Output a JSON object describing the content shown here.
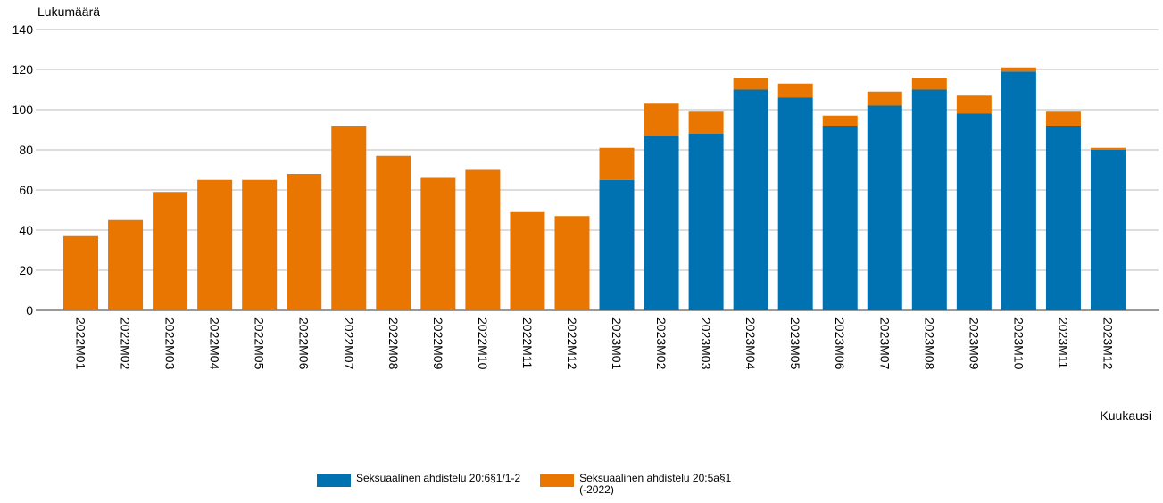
{
  "chart_data": {
    "type": "bar",
    "stacked": true,
    "y_label": "Lukumäärä",
    "x_label": "Kuukausi",
    "categories": [
      "2022M01",
      "2022M02",
      "2022M03",
      "2022M04",
      "2022M05",
      "2022M06",
      "2022M07",
      "2022M08",
      "2022M09",
      "2022M10",
      "2022M11",
      "2022M12",
      "2023M01",
      "2023M02",
      "2023M03",
      "2023M04",
      "2023M05",
      "2023M06",
      "2023M07",
      "2023M08",
      "2023M09",
      "2023M10",
      "2023M11",
      "2023M12"
    ],
    "series": [
      {
        "name": "Seksuaalinen ahdistelu 20:6§1/1-2",
        "color": "#0072b2",
        "values": [
          null,
          null,
          null,
          null,
          null,
          null,
          null,
          null,
          null,
          null,
          null,
          null,
          65,
          87,
          88,
          110,
          106,
          92,
          102,
          110,
          98,
          119,
          92,
          80
        ]
      },
      {
        "name": "Seksuaalinen ahdistelu 20:5a§1 (-2022)",
        "color": "#e87600",
        "values": [
          37,
          45,
          59,
          65,
          65,
          68,
          92,
          77,
          66,
          70,
          49,
          47,
          16,
          16,
          11,
          6,
          7,
          5,
          7,
          6,
          9,
          2,
          7,
          1
        ]
      }
    ],
    "ylim": [
      0,
      140
    ],
    "yticks": [
      0,
      20,
      40,
      60,
      80,
      100,
      120,
      140
    ],
    "grid": true
  }
}
